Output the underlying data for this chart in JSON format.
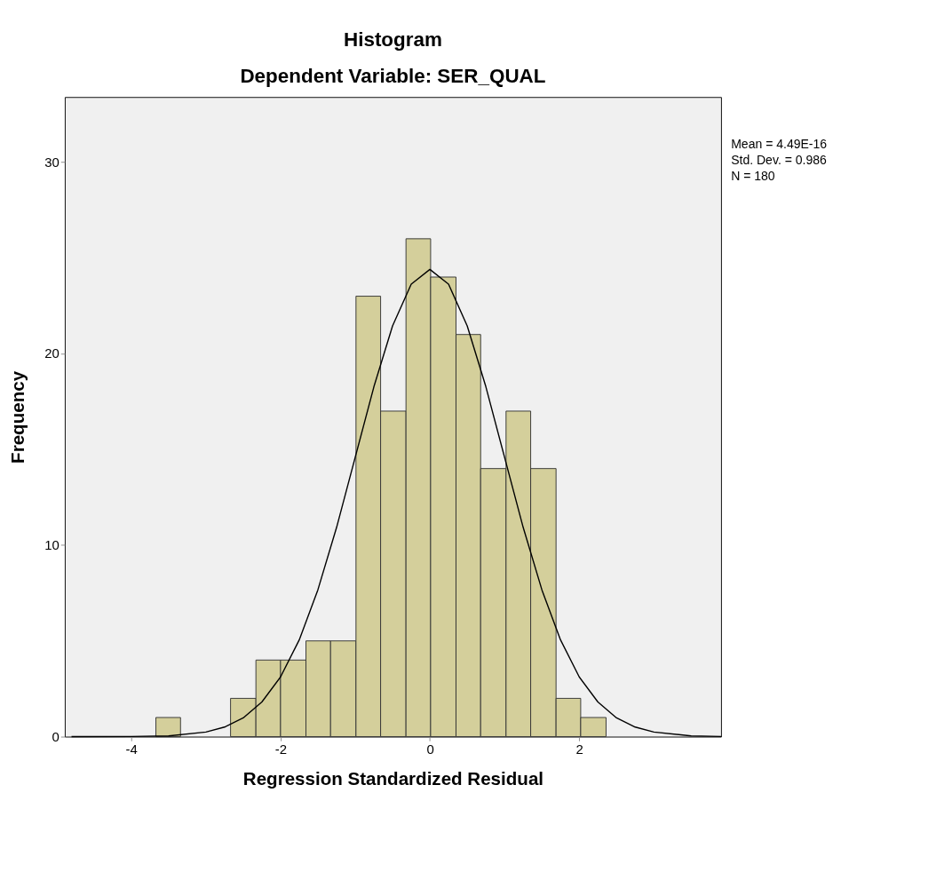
{
  "chart_data": {
    "type": "histogram",
    "title": "Histogram",
    "subtitle": "Dependent Variable: SER_QUAL",
    "xlabel": "Regression Standardized Residual",
    "ylabel": "Frequency",
    "bins": [
      -3.67,
      -3.34,
      -2.67,
      -2.33,
      -2.0,
      -1.66,
      -1.33,
      -0.99,
      -0.66,
      -0.32,
      0.01,
      0.35,
      0.68,
      1.02,
      1.35,
      1.69,
      2.02,
      2.36
    ],
    "values": [
      1,
      0,
      2,
      4,
      4,
      5,
      5,
      23,
      17,
      26,
      24,
      21,
      14,
      17,
      14,
      2,
      1
    ],
    "color": "#d4cf9b",
    "series": [
      {
        "type": "line",
        "color": "#000000",
        "x": [
          -4.8,
          -4.0,
          -3.5,
          -3.0,
          -2.75,
          -2.5,
          -2.25,
          -2.0,
          -1.75,
          -1.5,
          -1.25,
          -1.0,
          -0.75,
          -0.5,
          -0.25,
          0,
          0.25,
          0.5,
          0.75,
          1.0,
          1.25,
          1.5,
          1.75,
          2.0,
          2.25,
          2.5,
          2.75,
          3.0,
          3.5,
          3.9
        ],
        "values": [
          0.0,
          0.01,
          0.04,
          0.24,
          0.5,
          0.98,
          1.81,
          3.12,
          5.05,
          7.67,
          10.92,
          14.59,
          18.27,
          21.45,
          23.63,
          24.4,
          23.63,
          21.45,
          18.27,
          14.59,
          10.92,
          7.67,
          5.05,
          3.12,
          1.81,
          0.98,
          0.5,
          0.24,
          0.04,
          0.01
        ]
      }
    ],
    "annotations": [
      "Mean = 4.49E-16",
      "Std. Dev. = 0.986",
      "N = 180"
    ],
    "xlim": [
      -4.89,
      3.9
    ],
    "ylim": [
      0,
      33.4
    ],
    "xticks": [
      -4,
      -2,
      0,
      2
    ],
    "yticks": [
      0,
      10,
      20,
      30
    ],
    "grid": false
  }
}
